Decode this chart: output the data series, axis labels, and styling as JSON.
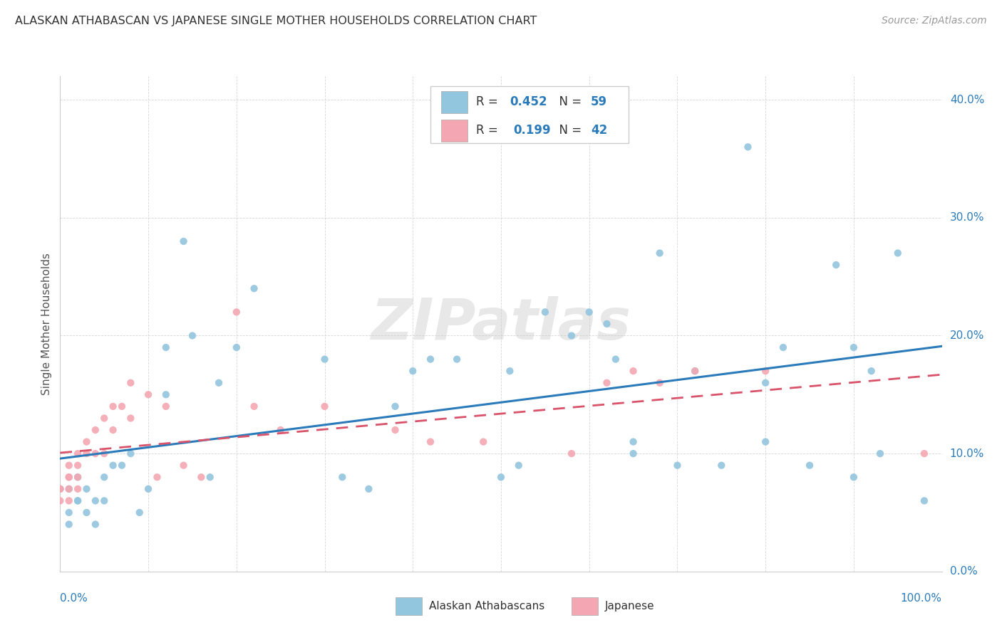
{
  "title": "ALASKAN ATHABASCAN VS JAPANESE SINGLE MOTHER HOUSEHOLDS CORRELATION CHART",
  "source": "Source: ZipAtlas.com",
  "ylabel": "Single Mother Households",
  "legend_label1": "Alaskan Athabascans",
  "legend_label2": "Japanese",
  "r1": "0.452",
  "n1": "59",
  "r2": "0.199",
  "n2": "42",
  "blue_color": "#92c5de",
  "pink_color": "#f4a6b2",
  "blue_line_color": "#2b7bba",
  "pink_line_color": "#d9536a",
  "watermark": "ZIPatlas",
  "xlim": [
    0,
    1
  ],
  "ylim": [
    0,
    0.42
  ],
  "yticks": [
    0.0,
    0.1,
    0.2,
    0.3,
    0.4
  ],
  "blue_points_x": [
    0.0,
    0.01,
    0.01,
    0.01,
    0.02,
    0.02,
    0.02,
    0.03,
    0.03,
    0.04,
    0.04,
    0.05,
    0.05,
    0.06,
    0.07,
    0.08,
    0.09,
    0.1,
    0.12,
    0.12,
    0.14,
    0.15,
    0.17,
    0.18,
    0.2,
    0.22,
    0.3,
    0.32,
    0.35,
    0.38,
    0.4,
    0.42,
    0.45,
    0.5,
    0.51,
    0.52,
    0.55,
    0.58,
    0.6,
    0.62,
    0.63,
    0.65,
    0.65,
    0.68,
    0.7,
    0.72,
    0.75,
    0.78,
    0.8,
    0.8,
    0.82,
    0.85,
    0.88,
    0.9,
    0.9,
    0.92,
    0.93,
    0.95,
    0.98
  ],
  "blue_points_y": [
    0.07,
    0.05,
    0.07,
    0.04,
    0.06,
    0.08,
    0.06,
    0.05,
    0.07,
    0.04,
    0.06,
    0.08,
    0.06,
    0.09,
    0.09,
    0.1,
    0.05,
    0.07,
    0.19,
    0.15,
    0.28,
    0.2,
    0.08,
    0.16,
    0.19,
    0.24,
    0.18,
    0.08,
    0.07,
    0.14,
    0.17,
    0.18,
    0.18,
    0.08,
    0.17,
    0.09,
    0.22,
    0.2,
    0.22,
    0.21,
    0.18,
    0.1,
    0.11,
    0.27,
    0.09,
    0.17,
    0.09,
    0.36,
    0.11,
    0.16,
    0.19,
    0.09,
    0.26,
    0.08,
    0.19,
    0.17,
    0.1,
    0.27,
    0.06
  ],
  "pink_points_x": [
    0.0,
    0.0,
    0.0,
    0.01,
    0.01,
    0.01,
    0.01,
    0.01,
    0.02,
    0.02,
    0.02,
    0.02,
    0.03,
    0.03,
    0.04,
    0.04,
    0.05,
    0.05,
    0.06,
    0.06,
    0.07,
    0.08,
    0.08,
    0.1,
    0.11,
    0.12,
    0.14,
    0.16,
    0.2,
    0.22,
    0.25,
    0.3,
    0.38,
    0.42,
    0.48,
    0.58,
    0.62,
    0.65,
    0.68,
    0.72,
    0.8,
    0.98
  ],
  "pink_points_y": [
    0.07,
    0.06,
    0.07,
    0.08,
    0.07,
    0.09,
    0.06,
    0.08,
    0.1,
    0.08,
    0.07,
    0.09,
    0.1,
    0.11,
    0.12,
    0.1,
    0.13,
    0.1,
    0.14,
    0.12,
    0.14,
    0.13,
    0.16,
    0.15,
    0.08,
    0.14,
    0.09,
    0.08,
    0.22,
    0.14,
    0.12,
    0.14,
    0.12,
    0.11,
    0.11,
    0.1,
    0.16,
    0.17,
    0.16,
    0.17,
    0.17,
    0.1
  ]
}
